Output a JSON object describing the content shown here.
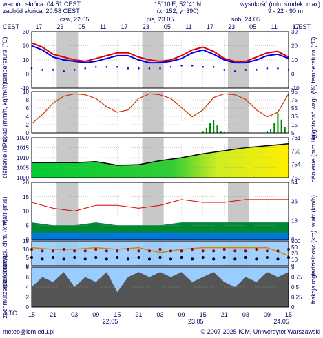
{
  "header": {
    "sunrise": "wschód słońca: 04:51 CEST",
    "sunset": "zachód słońca: 20:58 CEST",
    "coords": "15°10'E, 52°41'N",
    "grid": "(x=152, y=390)",
    "height_label": "wysokość (min, środek, max)",
    "height_values": "9 - 22 - 90 m"
  },
  "timezone": "CEST",
  "utc_label": "UTC",
  "top_hours": [
    "17",
    "23",
    "05",
    "11",
    "17",
    "23",
    "05",
    "11",
    "17",
    "23",
    "05",
    "11",
    "17"
  ],
  "day_labels": [
    {
      "text": "czw, 22.05",
      "h": 12
    },
    {
      "text": "pią, 23.05",
      "h": 36
    },
    {
      "text": "sob, 24.05",
      "h": 60
    }
  ],
  "bottom_hours": [
    "15",
    "21",
    "03",
    "09",
    "15",
    "21",
    "03",
    "09",
    "15",
    "21",
    "03",
    "09",
    "15"
  ],
  "bottom_dates": [
    {
      "text": "22.05",
      "h": 22
    },
    {
      "text": "23.05",
      "h": 46
    },
    {
      "text": "24.05",
      "h": 70
    }
  ],
  "footer": {
    "email": "meteo@icm.edu.pl",
    "copyright": "© 2007-2025 ICM, Uniwersytet Warszawski"
  },
  "colors": {
    "text": "#000066",
    "night": "#c8c8c8",
    "temp": "#dd0000",
    "dew": "#0000ee",
    "rain": "#008800",
    "humidity": "#cc3300",
    "wind": "#dd0000",
    "vis": "#cc8800",
    "sky": "#99ccff",
    "cloud": "#555555",
    "fog": "#888888"
  },
  "chart_data": [
    {
      "type": "line",
      "title": "temperatura",
      "ylabel": "temperatura (°C)",
      "ylabel_right": "temperatura (°C)",
      "ylim": [
        -10,
        30
      ],
      "ticks": [
        30,
        20,
        10,
        0,
        -10
      ],
      "x_unit": "hours from 15 UTC 21.05",
      "x": [
        0,
        3,
        6,
        9,
        12,
        15,
        18,
        21,
        24,
        27,
        30,
        33,
        36,
        39,
        42,
        45,
        48,
        51,
        54,
        57,
        60,
        63,
        66,
        69,
        72
      ],
      "series": [
        {
          "values": [
            22,
            19,
            14,
            12,
            10,
            9,
            11,
            13,
            15,
            15,
            12,
            10,
            9,
            10,
            13,
            17,
            19,
            16,
            11,
            9,
            9,
            12,
            15,
            16,
            12
          ]
        },
        {
          "values": [
            20,
            17,
            12,
            10,
            9,
            8,
            9,
            11,
            13,
            13,
            10,
            8,
            8,
            9,
            11,
            15,
            17,
            14,
            10,
            8,
            8,
            10,
            13,
            14,
            11
          ]
        },
        {
          "values": [
            4,
            3,
            3,
            2,
            3,
            4,
            5,
            5,
            5,
            4,
            4,
            4,
            4,
            5,
            6,
            6,
            5,
            5,
            3,
            2,
            3,
            3,
            4,
            4,
            3
          ]
        }
      ]
    },
    {
      "type": "bar",
      "title": "opad / wilgotność",
      "ylabel": "opad (mm/h, kg/m²/h)",
      "ylabel_right": "wilgotność wzgl. (%)",
      "ylim": [
        0,
        10
      ],
      "ylim_right": [
        5,
        95
      ],
      "ticks": [
        10,
        8,
        6,
        4,
        2,
        0
      ],
      "ticks_right": [
        95,
        75,
        55,
        35,
        15,
        5
      ],
      "x": [
        48,
        49,
        50,
        51,
        52,
        53,
        54,
        55,
        66,
        67,
        68,
        69,
        70,
        71
      ],
      "values": [
        0.3,
        1.2,
        2.4,
        3.0,
        1.8,
        0.5,
        0.2,
        0.1,
        0.4,
        1.0,
        2.5,
        4.8,
        3.2,
        1.5
      ],
      "series": [
        {
          "x": [
            0,
            3,
            6,
            9,
            12,
            15,
            18,
            21,
            24,
            27,
            30,
            33,
            36,
            39,
            42,
            45,
            48,
            51,
            54,
            57,
            60,
            63,
            66,
            69,
            72
          ],
          "values": [
            25,
            45,
            70,
            85,
            90,
            88,
            80,
            62,
            50,
            55,
            80,
            90,
            88,
            80,
            60,
            40,
            55,
            82,
            90,
            88,
            78,
            55,
            40,
            50,
            90
          ]
        }
      ]
    },
    {
      "type": "area",
      "title": "ciśnienie",
      "ylabel": "ciśnienie (hPa)",
      "ylabel_right": "ciśnienie (mm Hg)",
      "ylim": [
        1000,
        1020
      ],
      "ticks": [
        1020,
        1015,
        1010,
        1005,
        1000
      ],
      "ticks_right": [
        "761",
        "758",
        "754",
        "750"
      ],
      "x": [
        0,
        6,
        12,
        18,
        24,
        30,
        36,
        42,
        48,
        54,
        60,
        66,
        72
      ],
      "values": [
        1007.5,
        1007.5,
        1007.5,
        1008,
        1006.2,
        1006.5,
        1008.5,
        1010,
        1012,
        1013.5,
        1015,
        1016,
        1017
      ]
    },
    {
      "type": "line",
      "title": "wiatr",
      "ylabel": "wiatr (m/s)",
      "ylabel_right": "wiatr (km/h)",
      "ylim": [
        0,
        20
      ],
      "ticks": [
        20,
        15,
        10,
        5,
        0
      ],
      "ticks_right": [
        "54",
        "36",
        "18",
        "0"
      ],
      "x": [
        0,
        6,
        12,
        18,
        24,
        30,
        36,
        42,
        48,
        54,
        60,
        66,
        72
      ],
      "series": [
        {
          "values": [
            13,
            11,
            10,
            12,
            12,
            11,
            12,
            14,
            13,
            13,
            14,
            14,
            14
          ]
        },
        {
          "values": [
            6,
            5,
            5,
            6,
            5,
            5,
            5,
            6,
            6,
            6,
            6,
            6,
            6
          ]
        }
      ]
    },
    {
      "type": "line",
      "title": "widzialność",
      "ylabel": "pion. rozciągł. chm. (km)",
      "ylabel_right": "widzialność (km)",
      "ylim": [
        0,
        15
      ],
      "ticks": [
        15,
        10,
        5,
        0
      ],
      "ticks_right": [
        100,
        50,
        20,
        10,
        0
      ],
      "x": [
        0,
        6,
        12,
        18,
        24,
        30,
        36,
        42,
        48,
        54,
        60,
        66,
        72
      ],
      "values": [
        11,
        10,
        10,
        11,
        10,
        11,
        8,
        10,
        11,
        11,
        11,
        11,
        6
      ]
    },
    {
      "type": "area",
      "title": "zachmurzenie",
      "ylabel": "zachmurzenie (oktany)",
      "ylabel_right": "frakcja mgła",
      "ylim": [
        0,
        8
      ],
      "ticks": [
        8,
        6,
        4,
        2,
        0
      ],
      "ticks_right": [
        1,
        0.75,
        0.5,
        0.25,
        0
      ],
      "x": [
        0,
        3,
        6,
        9,
        12,
        15,
        18,
        21,
        24,
        27,
        30,
        33,
        36,
        39,
        42,
        45,
        48,
        51,
        54,
        57,
        60,
        63,
        66,
        69,
        72
      ],
      "values": [
        4,
        6,
        5,
        7,
        4,
        6,
        5,
        7,
        3,
        6,
        7,
        6,
        7,
        6,
        7,
        5,
        6,
        7,
        5,
        4,
        6,
        5,
        7,
        6,
        7
      ]
    }
  ]
}
